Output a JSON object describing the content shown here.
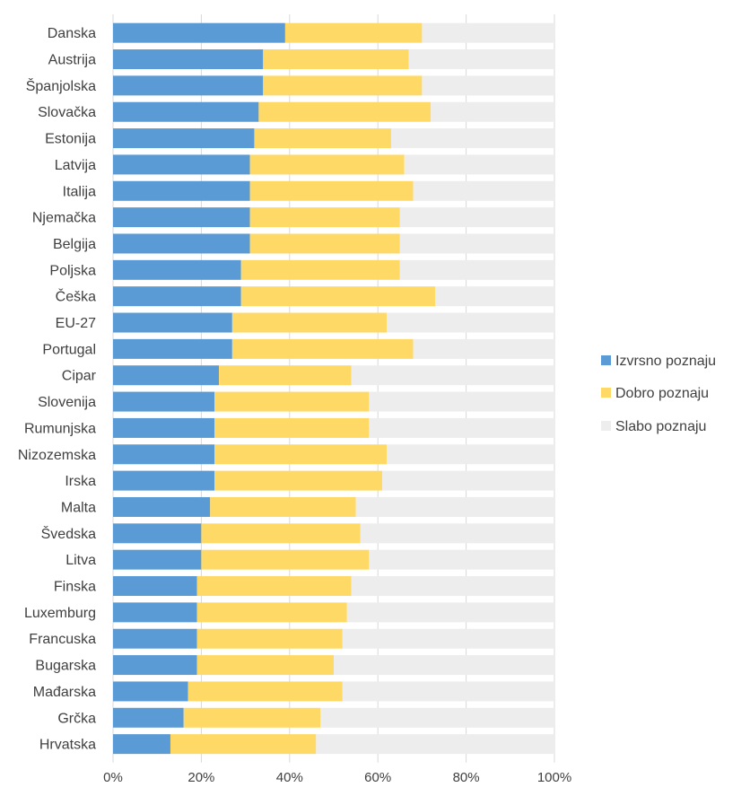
{
  "chart_data": {
    "type": "bar",
    "orientation": "horizontal",
    "stacked": true,
    "percent_stacked": true,
    "categories": [
      "Danska",
      "Austrija",
      "Španjolska",
      "Slovačka",
      "Estonija",
      "Latvija",
      "Italija",
      "Njemačka",
      "Belgija",
      "Poljska",
      "Češka",
      "EU-27",
      "Portugal",
      "Cipar",
      "Slovenija",
      "Rumunjska",
      "Nizozemska",
      "Irska",
      "Malta",
      "Švedska",
      "Litva",
      "Finska",
      "Luxemburg",
      "Francuska",
      "Bugarska",
      "Mađarska",
      "Grčka",
      "Hrvatska"
    ],
    "series": [
      {
        "name": "Izvrsno poznaju",
        "color": "#5b9bd5",
        "values": [
          39,
          34,
          34,
          33,
          32,
          31,
          31,
          31,
          31,
          29,
          29,
          27,
          27,
          24,
          23,
          23,
          23,
          23,
          22,
          20,
          20,
          19,
          19,
          19,
          19,
          17,
          16,
          13
        ]
      },
      {
        "name": "Dobro poznaju",
        "color": "#ffd966",
        "values": [
          31,
          33,
          36,
          39,
          31,
          35,
          37,
          34,
          34,
          36,
          44,
          35,
          41,
          30,
          35,
          35,
          39,
          38,
          33,
          36,
          38,
          35,
          34,
          33,
          31,
          35,
          31,
          33
        ]
      },
      {
        "name": "Slabo poznaju",
        "color": "#ededed",
        "values": [
          30,
          33,
          30,
          28,
          37,
          34,
          32,
          35,
          35,
          35,
          27,
          38,
          32,
          46,
          42,
          42,
          38,
          39,
          45,
          44,
          42,
          46,
          47,
          48,
          50,
          48,
          53,
          54
        ]
      }
    ],
    "xlim": [
      0,
      100
    ],
    "xticks": [
      "0%",
      "20%",
      "40%",
      "60%",
      "80%",
      "100%"
    ],
    "grid": true,
    "legend_position": "right"
  }
}
